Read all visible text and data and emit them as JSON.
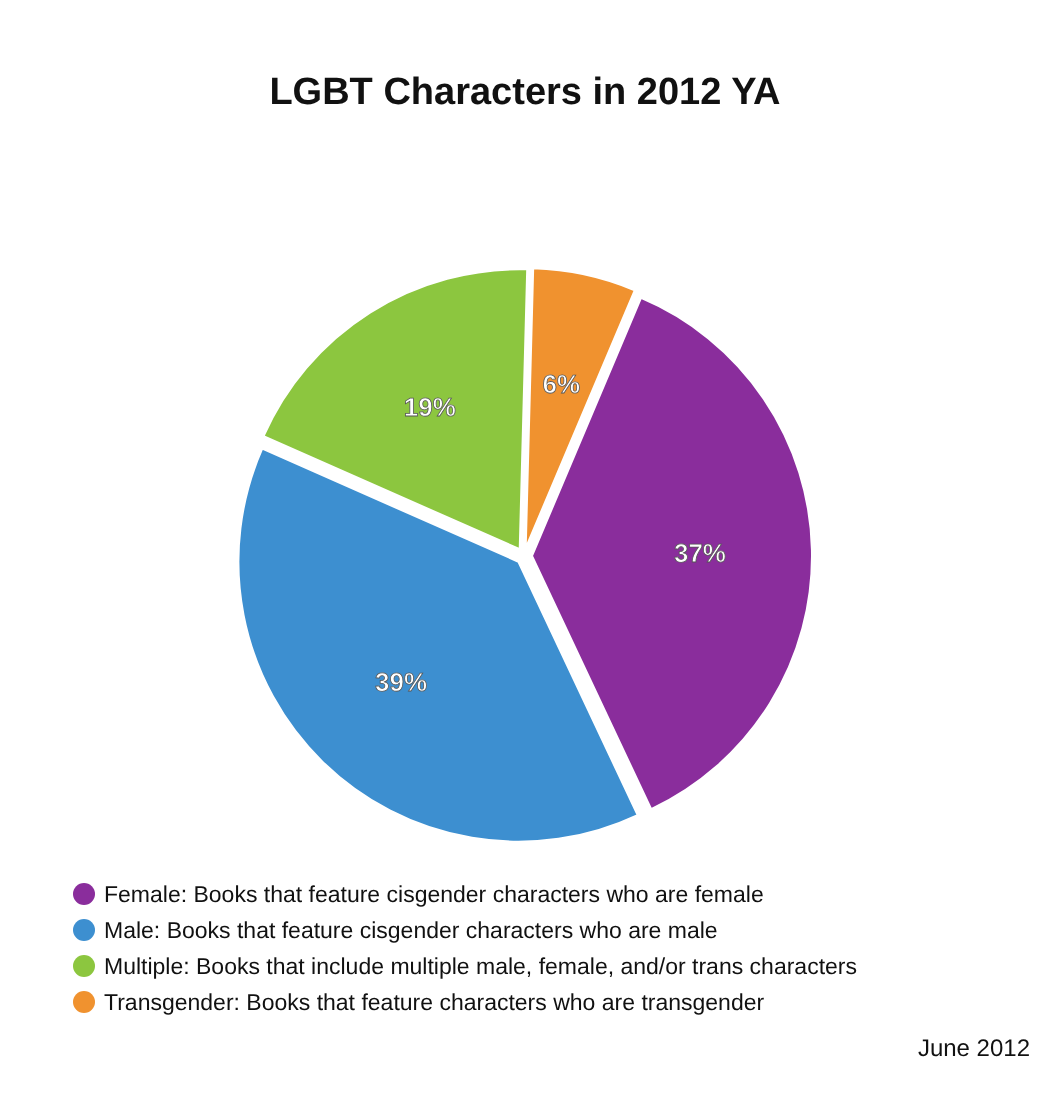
{
  "chart_data": {
    "type": "pie",
    "title": "LGBT Characters in 2012 YA",
    "categories": [
      "Female: Books that feature cisgender characters who are female",
      "Male: Books that feature cisgender characters who are male",
      "Multiple: Books that include multiple male, female, and/or trans characters",
      "Transgender: Books that feature characters who are transgender"
    ],
    "values": [
      37,
      39,
      19,
      6
    ],
    "colors": [
      "#8a2d9c",
      "#3d8fd0",
      "#8cc63f",
      "#f0922f"
    ],
    "value_labels": [
      "37%",
      "39%",
      "19%",
      "6%"
    ],
    "legend": "bottom",
    "annotations": [
      "June 2012"
    ]
  }
}
